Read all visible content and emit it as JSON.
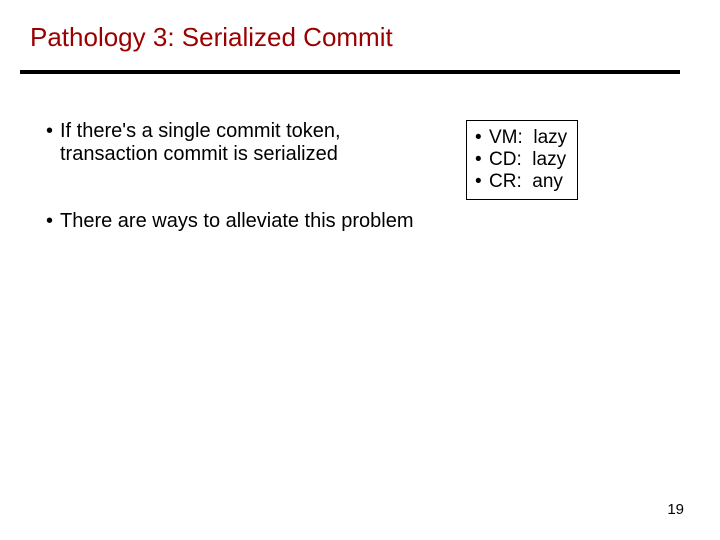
{
  "title": {
    "text": "Pathology 3: Serialized Commit",
    "color": "#9b0000",
    "fontsize": 26,
    "weight": "normal"
  },
  "rule": {
    "color": "#000000"
  },
  "body": {
    "fontsize": 20,
    "color": "#000000",
    "bullet_char": "•",
    "main_line1": "If there's a single commit token,",
    "main_line2": "transaction commit is serialized",
    "second": "There are ways to alleviate this problem"
  },
  "specbox": {
    "fontsize": 19,
    "color": "#000000",
    "border_color": "#000000",
    "bullet_char": "•",
    "rows": [
      {
        "label": "VM:",
        "value": "lazy"
      },
      {
        "label": "CD:",
        "value": "lazy"
      },
      {
        "label": "CR:",
        "value": "any"
      }
    ]
  },
  "pagenum": {
    "text": "19",
    "fontsize": 15,
    "color": "#000000"
  }
}
